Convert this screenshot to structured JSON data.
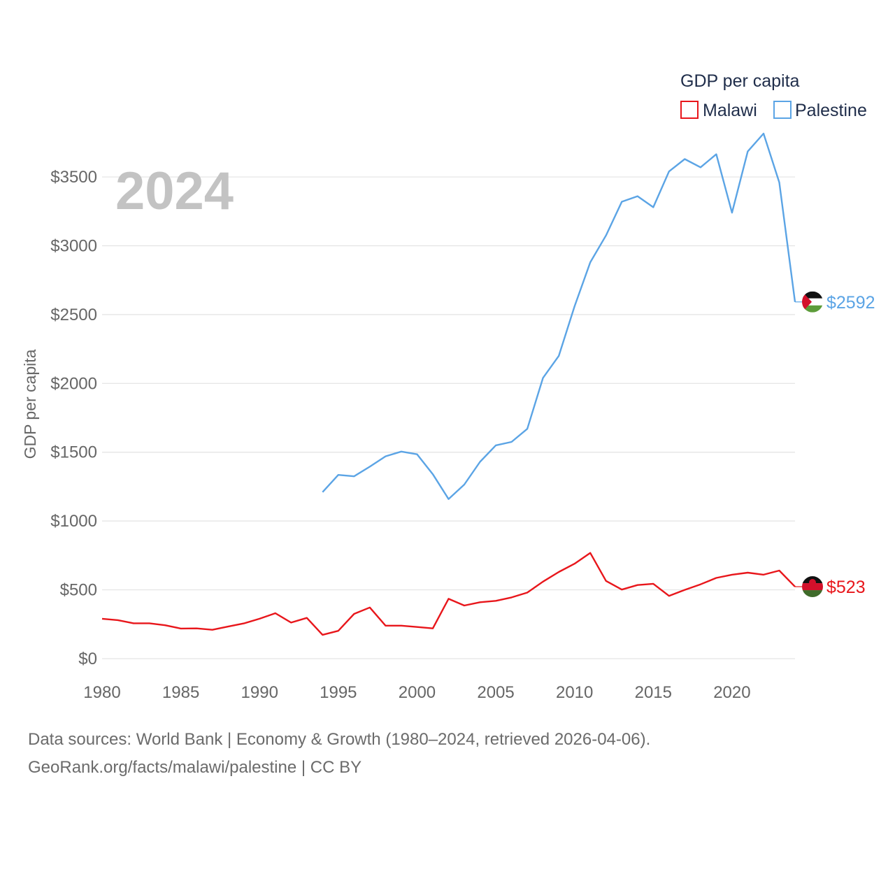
{
  "chart_data": {
    "type": "line",
    "title": "GDP per capita",
    "year_label": "2024",
    "ylabel": "GDP per capita",
    "xlabel": "",
    "xlim": [
      1980,
      2024
    ],
    "ylim": [
      0,
      3800
    ],
    "x_ticks": [
      1980,
      1985,
      1990,
      1995,
      2000,
      2005,
      2010,
      2015,
      2020
    ],
    "y_ticks": [
      0,
      500,
      1000,
      1500,
      2000,
      2500,
      3000,
      3500
    ],
    "y_tick_labels": [
      "$0",
      "$500",
      "$1000",
      "$1500",
      "$2000",
      "$2500",
      "$3000",
      "$3500"
    ],
    "legend": {
      "title": "GDP per capita",
      "placement": "top-right"
    },
    "series": [
      {
        "name": "Malawi",
        "color": "#e8161b",
        "flag": "malawi-flag",
        "end_label": "$523",
        "x": [
          1980,
          1981,
          1982,
          1983,
          1984,
          1985,
          1986,
          1987,
          1988,
          1989,
          1990,
          1991,
          1992,
          1993,
          1994,
          1995,
          1996,
          1997,
          1998,
          1999,
          2000,
          2001,
          2002,
          2003,
          2004,
          2005,
          2006,
          2007,
          2008,
          2009,
          2010,
          2011,
          2012,
          2013,
          2014,
          2015,
          2016,
          2017,
          2018,
          2019,
          2020,
          2021,
          2022,
          2023,
          2024
        ],
        "values": [
          290,
          280,
          257,
          257,
          243,
          219,
          220,
          210,
          233,
          256,
          290,
          330,
          262,
          296,
          173,
          202,
          325,
          372,
          240,
          240,
          230,
          220,
          435,
          386,
          410,
          420,
          445,
          480,
          560,
          630,
          690,
          768,
          565,
          502,
          535,
          544,
          456,
          500,
          540,
          587,
          610,
          625,
          610,
          640,
          523
        ]
      },
      {
        "name": "Palestine",
        "color": "#5ba4e5",
        "flag": "palestine-flag",
        "end_label": "$2592",
        "x": [
          1994,
          1995,
          1996,
          1997,
          1998,
          1999,
          2000,
          2001,
          2002,
          2003,
          2004,
          2005,
          2006,
          2007,
          2008,
          2009,
          2010,
          2011,
          2012,
          2013,
          2014,
          2015,
          2016,
          2017,
          2018,
          2019,
          2020,
          2021,
          2022,
          2023,
          2024
        ],
        "values": [
          1210,
          1335,
          1325,
          1395,
          1470,
          1505,
          1485,
          1340,
          1160,
          1265,
          1430,
          1550,
          1575,
          1670,
          2040,
          2200,
          2560,
          2880,
          3075,
          3320,
          3360,
          3280,
          3540,
          3630,
          3570,
          3665,
          3240,
          3685,
          3815,
          3460,
          2592
        ]
      }
    ]
  },
  "footer": {
    "line1": "Data sources: World Bank | Economy & Growth (1980–2024, retrieved 2026-04-06).",
    "line2": "GeoRank.org/facts/malawi/palestine | CC BY"
  }
}
